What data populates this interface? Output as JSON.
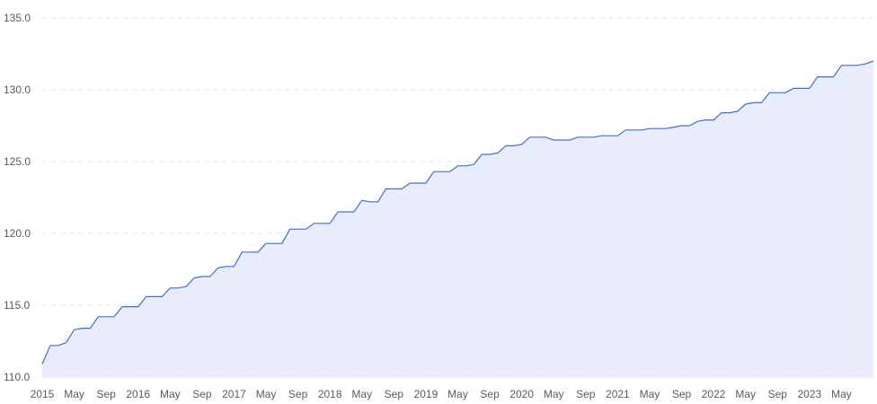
{
  "chart_data": {
    "type": "area",
    "title": "",
    "xlabel": "",
    "ylabel": "",
    "ylim": [
      110.0,
      135.0
    ],
    "y_ticks": [
      "110.0",
      "115.0",
      "120.0",
      "125.0",
      "130.0",
      "135.0"
    ],
    "x_tick_labels": [
      "2015",
      "May",
      "Sep",
      "2016",
      "May",
      "Sep",
      "2017",
      "May",
      "Sep",
      "2018",
      "May",
      "Sep",
      "2019",
      "May",
      "Sep",
      "2020",
      "May",
      "Sep",
      "2021",
      "May",
      "Sep",
      "2022",
      "May",
      "Sep",
      "2023",
      "May"
    ],
    "grid": true,
    "legend": "none",
    "colors": {
      "line": "#3b6fd8",
      "fill": "#e9edfb",
      "grid": "#e3e5ea",
      "text": "#555b66"
    },
    "x": [
      "2015-01",
      "2015-02",
      "2015-03",
      "2015-04",
      "2015-05",
      "2015-06",
      "2015-07",
      "2015-08",
      "2015-09",
      "2015-10",
      "2015-11",
      "2015-12",
      "2016-01",
      "2016-02",
      "2016-03",
      "2016-04",
      "2016-05",
      "2016-06",
      "2016-07",
      "2016-08",
      "2016-09",
      "2016-10",
      "2016-11",
      "2016-12",
      "2017-01",
      "2017-02",
      "2017-03",
      "2017-04",
      "2017-05",
      "2017-06",
      "2017-07",
      "2017-08",
      "2017-09",
      "2017-10",
      "2017-11",
      "2017-12",
      "2018-01",
      "2018-02",
      "2018-03",
      "2018-04",
      "2018-05",
      "2018-06",
      "2018-07",
      "2018-08",
      "2018-09",
      "2018-10",
      "2018-11",
      "2018-12",
      "2019-01",
      "2019-02",
      "2019-03",
      "2019-04",
      "2019-05",
      "2019-06",
      "2019-07",
      "2019-08",
      "2019-09",
      "2019-10",
      "2019-11",
      "2019-12",
      "2020-01",
      "2020-02",
      "2020-03",
      "2020-04",
      "2020-05",
      "2020-06",
      "2020-07",
      "2020-08",
      "2020-09",
      "2020-10",
      "2020-11",
      "2020-12",
      "2021-01",
      "2021-02",
      "2021-03",
      "2021-04",
      "2021-05",
      "2021-06",
      "2021-07",
      "2021-08",
      "2021-09",
      "2021-10",
      "2021-11",
      "2021-12",
      "2022-01",
      "2022-02",
      "2022-03",
      "2022-04",
      "2022-05",
      "2022-06",
      "2022-07",
      "2022-08",
      "2022-09",
      "2022-10",
      "2022-11",
      "2022-12",
      "2023-01",
      "2023-02",
      "2023-03",
      "2023-04",
      "2023-05",
      "2023-06",
      "2023-07",
      "2023-08",
      "2023-09"
    ],
    "series": [
      {
        "values": [
          110.9,
          112.2,
          112.2,
          112.4,
          113.3,
          113.4,
          113.4,
          114.2,
          114.2,
          114.2,
          114.9,
          114.9,
          114.9,
          115.6,
          115.6,
          115.6,
          116.2,
          116.2,
          116.3,
          116.9,
          117.0,
          117.0,
          117.6,
          117.7,
          117.7,
          118.7,
          118.7,
          118.7,
          119.3,
          119.3,
          119.3,
          120.3,
          120.3,
          120.3,
          120.7,
          120.7,
          120.7,
          121.5,
          121.5,
          121.5,
          122.3,
          122.2,
          122.2,
          123.1,
          123.1,
          123.1,
          123.5,
          123.5,
          123.5,
          124.3,
          124.3,
          124.3,
          124.7,
          124.7,
          124.8,
          125.5,
          125.5,
          125.6,
          126.1,
          126.1,
          126.2,
          126.7,
          126.7,
          126.7,
          126.5,
          126.5,
          126.5,
          126.7,
          126.7,
          126.7,
          126.8,
          126.8,
          126.8,
          127.2,
          127.2,
          127.2,
          127.3,
          127.3,
          127.3,
          127.4,
          127.5,
          127.5,
          127.8,
          127.9,
          127.9,
          128.4,
          128.4,
          128.5,
          129.0,
          129.1,
          129.1,
          129.8,
          129.8,
          129.8,
          130.1,
          130.1,
          130.1,
          130.9,
          130.9,
          130.9,
          131.7,
          131.7,
          131.7,
          131.8,
          132.0
        ]
      }
    ]
  }
}
